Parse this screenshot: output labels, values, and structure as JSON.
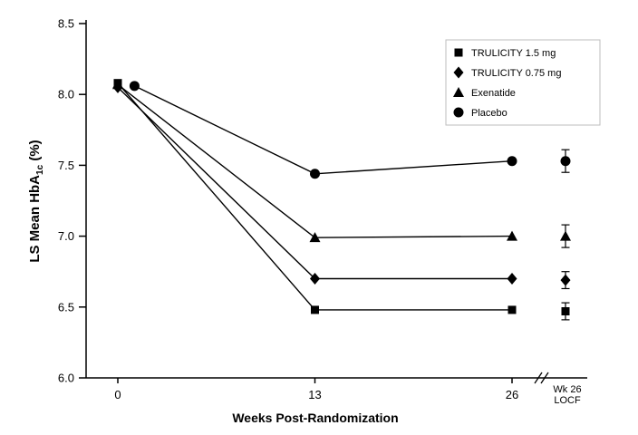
{
  "figure": {
    "ylabel_pre": "LS Mean HbA",
    "ylabel_sub": "1c",
    "ylabel_post": " (%)",
    "xlabel": "Weeks Post-Randomization"
  },
  "chart_data": {
    "type": "line",
    "title": "",
    "xlabel": "Weeks Post-Randomization",
    "ylabel": "LS Mean HbA1c (%)",
    "ylim": [
      6.0,
      8.5
    ],
    "y_ticks": [
      8.5,
      8.0,
      7.5,
      7.0,
      6.5,
      6.0
    ],
    "x_ticks": [
      {
        "value": 0,
        "label": "0"
      },
      {
        "value": 13,
        "label": "13"
      },
      {
        "value": 26,
        "label": "26"
      }
    ],
    "axis_break": true,
    "locf_label_lines": [
      "Wk 26",
      "LOCF"
    ],
    "legend_position": "top-right",
    "grid": false,
    "line_color": "#000000",
    "series": [
      {
        "name": "TRULICITY 1.5 mg",
        "marker": "square",
        "x": [
          0,
          13,
          26
        ],
        "y": [
          8.08,
          6.48,
          6.48
        ],
        "locf": {
          "y": 6.47,
          "err": 0.06
        }
      },
      {
        "name": "TRULICITY 0.75 mg",
        "marker": "diamond",
        "x": [
          0,
          13,
          26
        ],
        "y": [
          8.05,
          6.7,
          6.7
        ],
        "locf": {
          "y": 6.69,
          "err": 0.06
        }
      },
      {
        "name": "Exenatide",
        "marker": "triangle",
        "x": [
          0,
          13,
          26
        ],
        "y": [
          8.07,
          6.99,
          7.0
        ],
        "locf": {
          "y": 7.0,
          "err": 0.08
        }
      },
      {
        "name": "Placebo",
        "marker": "circle",
        "x": [
          1.1,
          13,
          26
        ],
        "y": [
          8.06,
          7.44,
          7.53
        ],
        "locf": {
          "y": 7.53,
          "err": 0.08
        }
      }
    ]
  }
}
